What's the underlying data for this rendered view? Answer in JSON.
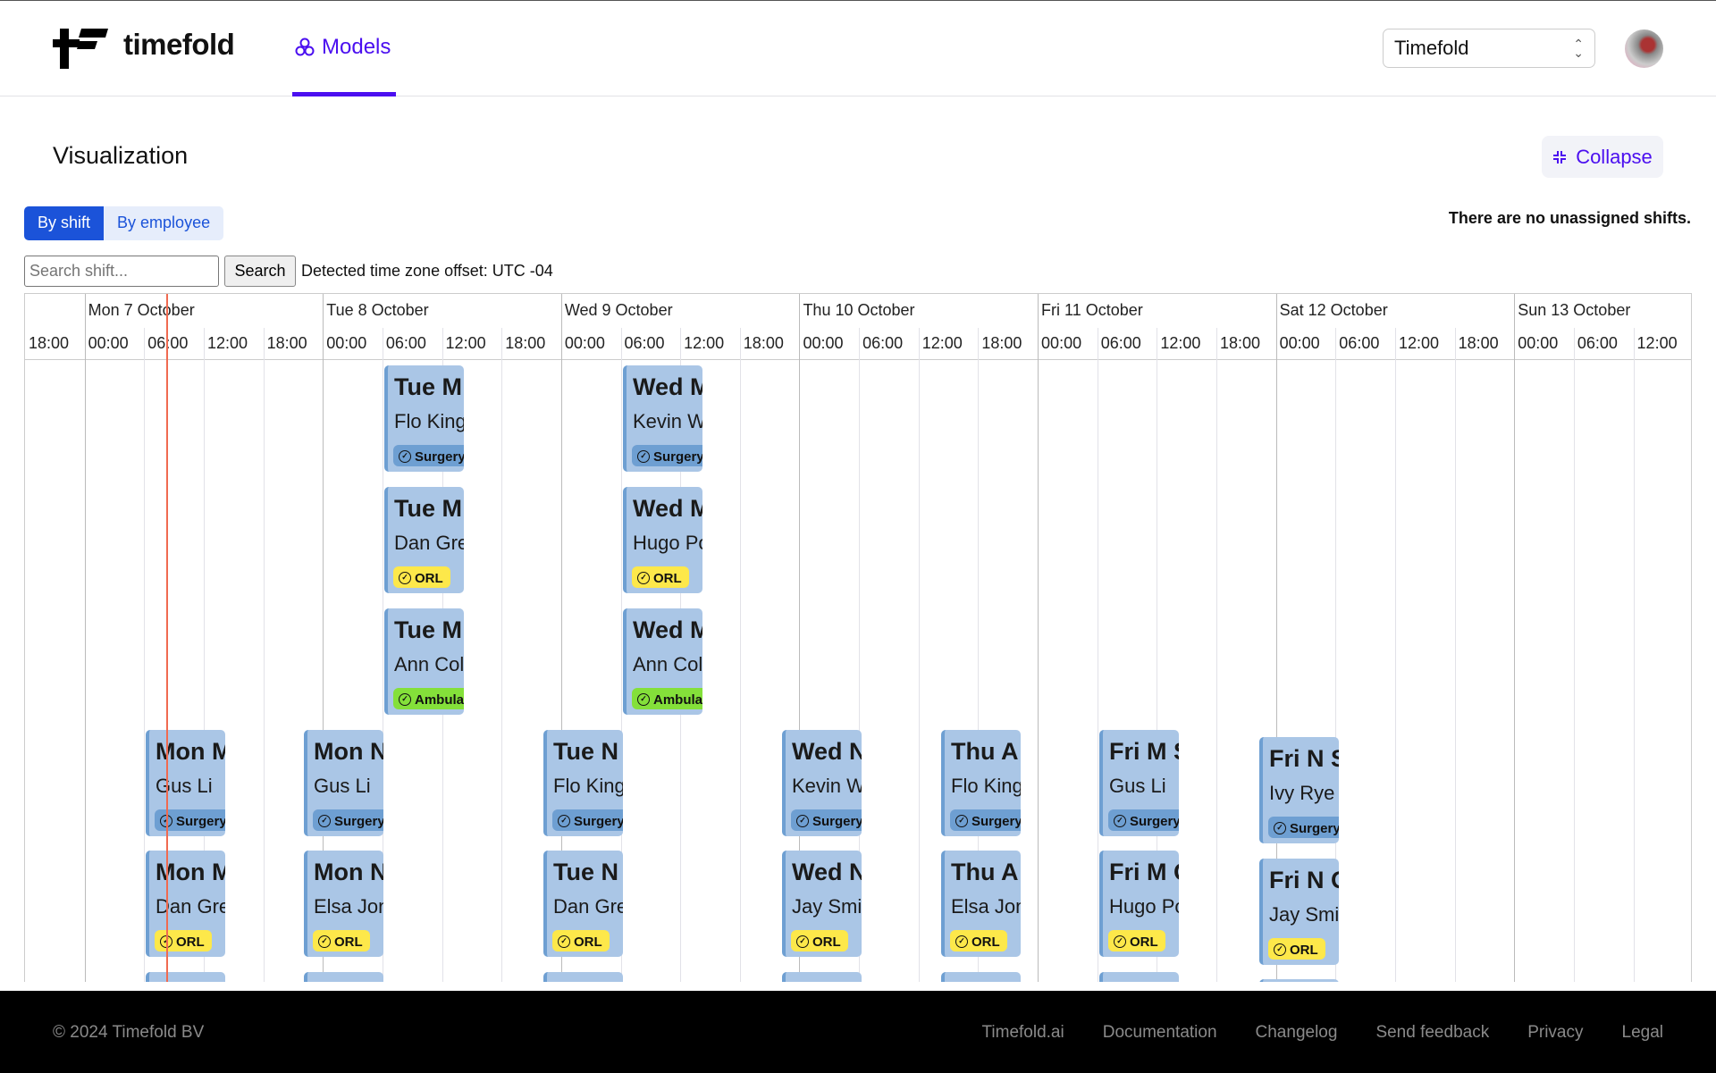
{
  "header": {
    "brand": "timefold",
    "nav": [
      {
        "label": "Models",
        "icon": "models-icon",
        "active": true
      }
    ],
    "tenant_select": "Timefold",
    "accent": "#4b0ff0"
  },
  "page": {
    "title": "Visualization",
    "collapse_label": "Collapse",
    "unassigned_message": "There are no unassigned shifts."
  },
  "tabs": [
    {
      "label": "By shift",
      "active": true
    },
    {
      "label": "By employee",
      "active": false
    }
  ],
  "search": {
    "placeholder": "Search shift...",
    "value": "",
    "button": "Search",
    "timezone_text": "Detected time zone offset: UTC -04"
  },
  "timeline": {
    "days": [
      "Mon 7 October",
      "Tue 8 October",
      "Wed 9 October",
      "Thu 10 October",
      "Fri 11 October",
      "Sat 12 October",
      "Sun 13 October"
    ],
    "times": [
      "18:00",
      "00:00",
      "06:00",
      "12:00",
      "18:00",
      "00:00",
      "06:00",
      "12:00",
      "18:00",
      "00:00",
      "06:00",
      "12:00",
      "18:00",
      "00:00",
      "06:00",
      "12:00",
      "18:00",
      "00:00",
      "06:00",
      "12:00",
      "18:00",
      "00:00",
      "06:00",
      "12:00",
      "18:00",
      "00:00",
      "06:00",
      "12:00"
    ],
    "skill_colors": {
      "Surgery": "#6e9fd2",
      "ORL": "#fde84a",
      "Ambulatory": "#84e03a"
    },
    "shifts": [
      {
        "title": "Tue M",
        "employee": "Flo King",
        "skill": "Surgery"
      },
      {
        "title": "Tue M",
        "employee": "Dan Gre",
        "skill": "ORL"
      },
      {
        "title": "Tue M",
        "employee": "Ann Col",
        "skill": "Ambula"
      },
      {
        "title": "Wed M",
        "employee": "Kevin W",
        "skill": "Surgery"
      },
      {
        "title": "Wed M",
        "employee": "Hugo Po",
        "skill": "ORL"
      },
      {
        "title": "Wed M",
        "employee": "Ann Col",
        "skill": "Ambula"
      },
      {
        "title": "Mon M",
        "employee": "Gus Li",
        "skill": "Surgery"
      },
      {
        "title": "Mon M",
        "employee": "Dan Gre",
        "skill": "ORL"
      },
      {
        "title": "Mon N",
        "employee": "Gus Li",
        "skill": "Surgery"
      },
      {
        "title": "Mon N",
        "employee": "Elsa Jon",
        "skill": "ORL"
      },
      {
        "title": "Tue N S",
        "employee": "Flo King",
        "skill": "Surgery"
      },
      {
        "title": "Tue N O",
        "employee": "Dan Gre",
        "skill": "ORL"
      },
      {
        "title": "Wed N",
        "employee": "Kevin W",
        "skill": "Surgery"
      },
      {
        "title": "Wed N",
        "employee": "Jay Smi",
        "skill": "ORL"
      },
      {
        "title": "Thu A S",
        "employee": "Flo King",
        "skill": "Surgery"
      },
      {
        "title": "Thu A O",
        "employee": "Elsa Jon",
        "skill": "ORL"
      },
      {
        "title": "Fri M S",
        "employee": "Gus Li",
        "skill": "Surgery"
      },
      {
        "title": "Fri M O",
        "employee": "Hugo Po",
        "skill": "ORL"
      },
      {
        "title": "Fri N S",
        "employee": "Ivy Rye",
        "skill": "Surgery"
      },
      {
        "title": "Fri N O",
        "employee": "Jay Smi",
        "skill": "ORL"
      }
    ]
  },
  "footer": {
    "copyright": "© 2024 Timefold BV",
    "links": [
      "Timefold.ai",
      "Documentation",
      "Changelog",
      "Send feedback",
      "Privacy",
      "Legal"
    ]
  }
}
